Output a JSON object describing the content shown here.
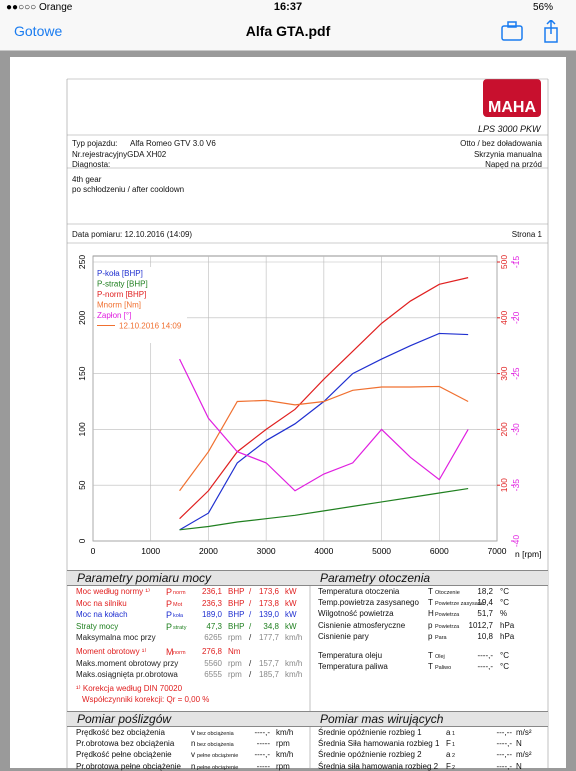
{
  "status_bar": {
    "carrier": "●●○○○ Orange",
    "time": "16:37",
    "battery": "56%"
  },
  "nav": {
    "back": "Gotowe",
    "title": "Alfa GTA.pdf"
  },
  "header": {
    "logo": "MAHA",
    "model": "LPS 3000 PKW",
    "info_left": [
      [
        "Typ pojazdu:",
        "Alfa Romeo GTV 3.0 V6"
      ],
      [
        "Nr.rejestracyjnyGDA XH02",
        ""
      ],
      [
        "Diagnosta:",
        ""
      ]
    ],
    "info_right": [
      "Otto / bez doładowania",
      "Skrzynia manualna",
      "Napęd na przód"
    ],
    "notes": [
      "4th gear",
      "po schłodzeniu / after cooldown"
    ],
    "date": "Data pomiaru: 12.10.2016 (14:09)",
    "page": "Strona 1"
  },
  "chart_data": {
    "type": "line",
    "xlabel": "n [rpm]",
    "measurement": "12.10.2016 14:09",
    "measurement_color": "#f07030",
    "x": [
      1500,
      2000,
      2500,
      3000,
      3500,
      4000,
      4500,
      5000,
      5500,
      6000,
      6500
    ],
    "xlim": [
      0,
      7000
    ],
    "xticks": [
      0,
      1000,
      2000,
      3000,
      4000,
      5000,
      6000,
      7000
    ],
    "ylim": [
      0,
      250
    ],
    "yticks": [
      0,
      50,
      100,
      150,
      200,
      250
    ],
    "y2lim": [
      0,
      500
    ],
    "y2ticks": [
      100,
      200,
      300,
      400,
      500
    ],
    "y2color": "#e02020",
    "y3lim": [
      -40,
      -15
    ],
    "y3ticks": [
      -40,
      -35,
      -30,
      -25,
      -20,
      -15
    ],
    "y3color": "#e020e0",
    "grid": true,
    "series": [
      {
        "name": "P-koła [BHP]",
        "color": "#2030d0",
        "values": [
          10,
          25,
          70,
          90,
          105,
          125,
          150,
          163,
          175,
          186,
          185
        ]
      },
      {
        "name": "P-straty [BHP]",
        "color": "#208020",
        "values": [
          10,
          13,
          17,
          20,
          23,
          27,
          31,
          35,
          39,
          43,
          47
        ]
      },
      {
        "name": "P-norm [BHP]",
        "color": "#e02020",
        "values": [
          20,
          45,
          80,
          100,
          118,
          145,
          170,
          195,
          215,
          230,
          236
        ]
      },
      {
        "name": "Mnorm [Nm]",
        "color": "#f07030",
        "axis": "y2",
        "values": [
          90,
          160,
          250,
          252,
          244,
          250,
          270,
          276,
          276,
          277,
          250
        ]
      },
      {
        "name": "Zapłon [°]",
        "color": "#e020e0",
        "axis": "y3",
        "values": [
          -23.7,
          -29,
          -32,
          -33,
          -35.5,
          -34,
          -33,
          -30,
          -32.5,
          -34.5,
          -30
        ]
      }
    ]
  },
  "power": {
    "title": "Parametry pomiaru mocy",
    "rows": [
      {
        "color": "#e02020",
        "cells": [
          "Moc według normy ¹⁾",
          "P",
          "norm",
          "236,1",
          "BHP",
          "/",
          "173,6",
          "kW"
        ]
      },
      {
        "color": "#e02020",
        "cells": [
          "Moc na silniku",
          "P",
          "Mot",
          "236,3",
          "BHP",
          "/",
          "173,8",
          "kW"
        ]
      },
      {
        "color": "#2030d0",
        "cells": [
          "Moc na kołach",
          "P",
          "koła",
          "189,0",
          "BHP",
          "/",
          "139,0",
          "kW"
        ]
      },
      {
        "color": "#208020",
        "cells": [
          "Straty mocy",
          "P",
          "straty",
          "47,3",
          "BHP",
          "/",
          "34,8",
          "kW"
        ]
      },
      {
        "color": "#222222",
        "cells": [
          "Maksymalna moc przy",
          "",
          "",
          "6265",
          "rpm",
          "/",
          "177,7",
          "km/h"
        ]
      },
      {
        "color": "#e02020",
        "cells": [
          "Moment obrotowy ¹⁾",
          "M",
          "norm",
          "276,8",
          "Nm",
          "",
          "",
          ""
        ]
      },
      {
        "color": "#222222",
        "cells": [
          "Maks.moment obrotowy przy",
          "",
          "",
          "5560",
          "rpm",
          "/",
          "157,7",
          "km/h"
        ]
      },
      {
        "color": "#222222",
        "cells": [
          "Maks.osiągnięta pr.obrotowa",
          "",
          "",
          "6555",
          "rpm",
          "/",
          "185,7",
          "km/h"
        ]
      }
    ],
    "notes": [
      "¹⁾ Korekcja według DIN 70020",
      "Współczynniki korekcji: Qr = 0,00 %"
    ]
  },
  "ambient": {
    "title": "Parametry otoczenia",
    "rows": [
      [
        "Temperatura otoczenia",
        "T",
        "Otoczenie",
        "18,2",
        "°C"
      ],
      [
        "Temp.powietrza zasysanego",
        "T",
        "Powietrze zasysane",
        "19,4",
        "°C"
      ],
      [
        "Wilgotność powietrza",
        "H",
        "Powietrza",
        "51,7",
        "%"
      ],
      [
        "Cisnienie atmosferyczne",
        "p",
        "Powietrza",
        "1012,7",
        "hPa"
      ],
      [
        "Cisnienie pary",
        "p",
        "Para",
        "10,8",
        "hPa"
      ],
      [
        "Temperatura oleju",
        "T",
        "Olej",
        "----,-",
        "°C"
      ],
      [
        "Temperatura paliwa",
        "T",
        "Paliwo",
        "----,-",
        "°C"
      ]
    ]
  },
  "slip": {
    "title": "Pomiar poślizgów",
    "rows": [
      [
        "Prędkość bez obciążenia",
        "v",
        "bez obciążenia",
        "----,-",
        "km/h"
      ],
      [
        "Pr.obrotowa bez obciążenia",
        "n",
        "bez obciążenia",
        "-----",
        "rpm"
      ],
      [
        "Prędkość pełne obciążenie",
        "v",
        "pełne obciążenie",
        "----,-",
        "km/h"
      ],
      [
        "Pr.obrotowa pełne obciążenie",
        "n",
        "pełne obciążenie",
        "-----",
        "rpm"
      ]
    ]
  },
  "mass": {
    "title": "Pomiar mas wirujących",
    "rows": [
      [
        "Średnie opóźnienie rozbieg 1",
        "a",
        "1",
        "---,--",
        "m/s²"
      ],
      [
        "Średnia Siła hamowania rozbieg 1",
        "F",
        "1",
        "----,-",
        "N"
      ],
      [
        "Średnie opóźnienie rozbieg 2",
        "a",
        "2",
        "---,--",
        "m/s²"
      ],
      [
        "Średnia siła hamowania rozbieg 2",
        "F",
        "2",
        "----,-",
        "N"
      ]
    ]
  }
}
